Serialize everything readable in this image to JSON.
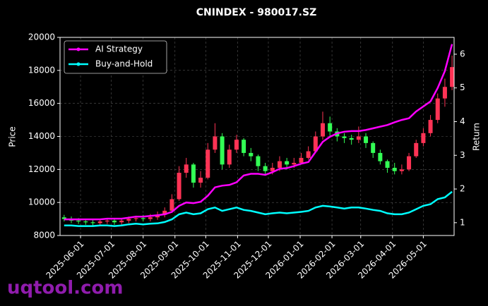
{
  "chart_data": {
    "type": "candlestick",
    "title": "CNINDEX - 980017.SZ",
    "y_label": "Price",
    "y2_label": "Return",
    "watermark": "uqtool.com",
    "legend": "upper left",
    "grid": true,
    "up_color": "#ff3355",
    "down_color": "#33ff55",
    "xlim": [
      "2025-05-12",
      "2026-05-31"
    ],
    "xticks": [
      "2025-06-01",
      "2025-07-01",
      "2025-08-01",
      "2025-09-01",
      "2025-10-01",
      "2025-11-01",
      "2025-12-01",
      "2026-01-01",
      "2026-02-01",
      "2026-03-01",
      "2026-04-01",
      "2026-05-01"
    ],
    "ylim": [
      8000,
      20000
    ],
    "yticks": [
      8000,
      10000,
      12000,
      14000,
      16000,
      18000,
      20000
    ],
    "y2lim": [
      0.62,
      6.5
    ],
    "y2ticks": [
      1,
      2,
      3,
      4,
      5,
      6
    ],
    "x": [
      "2025-05-16",
      "2025-05-23",
      "2025-05-30",
      "2025-06-06",
      "2025-06-13",
      "2025-06-20",
      "2025-06-27",
      "2025-07-04",
      "2025-07-11",
      "2025-07-18",
      "2025-07-25",
      "2025-08-01",
      "2025-08-08",
      "2025-08-15",
      "2025-08-22",
      "2025-08-29",
      "2025-09-05",
      "2025-09-12",
      "2025-09-19",
      "2025-09-26",
      "2025-10-03",
      "2025-10-10",
      "2025-10-17",
      "2025-10-24",
      "2025-10-31",
      "2025-11-07",
      "2025-11-14",
      "2025-11-21",
      "2025-11-28",
      "2025-12-05",
      "2025-12-12",
      "2025-12-19",
      "2025-12-26",
      "2026-01-02",
      "2026-01-09",
      "2026-01-16",
      "2026-01-23",
      "2026-01-30",
      "2026-02-06",
      "2026-02-13",
      "2026-02-20",
      "2026-02-27",
      "2026-03-06",
      "2026-03-13",
      "2026-03-20",
      "2026-03-27",
      "2026-04-03",
      "2026-04-10",
      "2026-04-17",
      "2026-04-24",
      "2026-05-01",
      "2026-05-08",
      "2026-05-15",
      "2026-05-22",
      "2026-05-29"
    ],
    "open": [
      9100,
      9000,
      8900,
      8850,
      8800,
      8750,
      8850,
      8900,
      8800,
      8900,
      9000,
      9050,
      9000,
      9100,
      9250,
      9500,
      10200,
      11800,
      12300,
      11200,
      11500,
      13200,
      14000,
      12300,
      13200,
      13800,
      13000,
      12800,
      12200,
      11900,
      12100,
      12500,
      12300,
      12400,
      12700,
      13100,
      14000,
      14800,
      14300,
      14000,
      13900,
      13800,
      14000,
      13600,
      13000,
      12500,
      12100,
      11900,
      12000,
      12800,
      13600,
      14200,
      15000,
      16300,
      17000
    ],
    "high": [
      9250,
      9150,
      9050,
      9000,
      8950,
      9000,
      9050,
      9050,
      9050,
      9150,
      9200,
      9250,
      9300,
      9450,
      9700,
      10500,
      12200,
      12700,
      12400,
      11900,
      13600,
      14800,
      14200,
      13500,
      14100,
      13900,
      13300,
      12900,
      12400,
      12400,
      12800,
      12700,
      12700,
      13000,
      13400,
      14300,
      15500,
      15200,
      14500,
      14200,
      14100,
      14600,
      14200,
      13700,
      13200,
      12600,
      12400,
      12300,
      13000,
      13800,
      14500,
      15300,
      16600,
      17500,
      18900
    ],
    "low": [
      8850,
      8750,
      8700,
      8650,
      8600,
      8600,
      8700,
      8650,
      8650,
      8750,
      8850,
      8850,
      8850,
      8950,
      9100,
      9400,
      10100,
      11500,
      10900,
      10900,
      11400,
      13000,
      12000,
      12100,
      13000,
      12800,
      12500,
      11900,
      11700,
      11700,
      11900,
      12000,
      12100,
      12300,
      12600,
      13000,
      13800,
      14000,
      13700,
      13600,
      13500,
      13600,
      13300,
      12700,
      12300,
      11800,
      11700,
      11700,
      11900,
      12700,
      13400,
      14000,
      14800,
      15800,
      16800
    ],
    "close": [
      9000,
      8900,
      8850,
      8800,
      8750,
      8850,
      8900,
      8800,
      8900,
      9000,
      9050,
      9000,
      9100,
      9250,
      9500,
      10200,
      11800,
      12300,
      11200,
      11500,
      13200,
      14000,
      12300,
      13200,
      13800,
      13000,
      12800,
      12200,
      11900,
      12100,
      12500,
      12300,
      12400,
      12700,
      13100,
      14000,
      14800,
      14300,
      14000,
      13900,
      13800,
      14000,
      13600,
      13000,
      12500,
      12100,
      11900,
      12000,
      12800,
      13600,
      14200,
      15000,
      16300,
      17000,
      18200
    ],
    "series": [
      {
        "name": "AI Strategy",
        "color": "#ff00ff",
        "axis": "y2",
        "values": [
          1.1,
          1.1,
          1.1,
          1.1,
          1.1,
          1.1,
          1.12,
          1.12,
          1.12,
          1.15,
          1.18,
          1.18,
          1.2,
          1.22,
          1.25,
          1.32,
          1.5,
          1.6,
          1.58,
          1.62,
          1.8,
          2.05,
          2.1,
          2.12,
          2.2,
          2.4,
          2.45,
          2.45,
          2.42,
          2.5,
          2.6,
          2.62,
          2.68,
          2.75,
          2.8,
          3.1,
          3.4,
          3.55,
          3.65,
          3.7,
          3.72,
          3.72,
          3.75,
          3.8,
          3.85,
          3.9,
          3.98,
          4.05,
          4.1,
          4.3,
          4.45,
          4.6,
          5.0,
          5.5,
          6.3
        ]
      },
      {
        "name": "Buy-and-Hold",
        "color": "#00ffff",
        "axis": "y2",
        "values": [
          0.92,
          0.92,
          0.9,
          0.9,
          0.9,
          0.92,
          0.92,
          0.9,
          0.92,
          0.95,
          0.97,
          0.95,
          0.97,
          0.98,
          1.02,
          1.1,
          1.25,
          1.3,
          1.25,
          1.28,
          1.4,
          1.45,
          1.35,
          1.4,
          1.45,
          1.38,
          1.35,
          1.3,
          1.25,
          1.28,
          1.3,
          1.28,
          1.3,
          1.32,
          1.35,
          1.45,
          1.5,
          1.48,
          1.45,
          1.42,
          1.45,
          1.45,
          1.42,
          1.38,
          1.35,
          1.28,
          1.25,
          1.25,
          1.3,
          1.4,
          1.5,
          1.55,
          1.7,
          1.75,
          1.92
        ]
      }
    ]
  }
}
